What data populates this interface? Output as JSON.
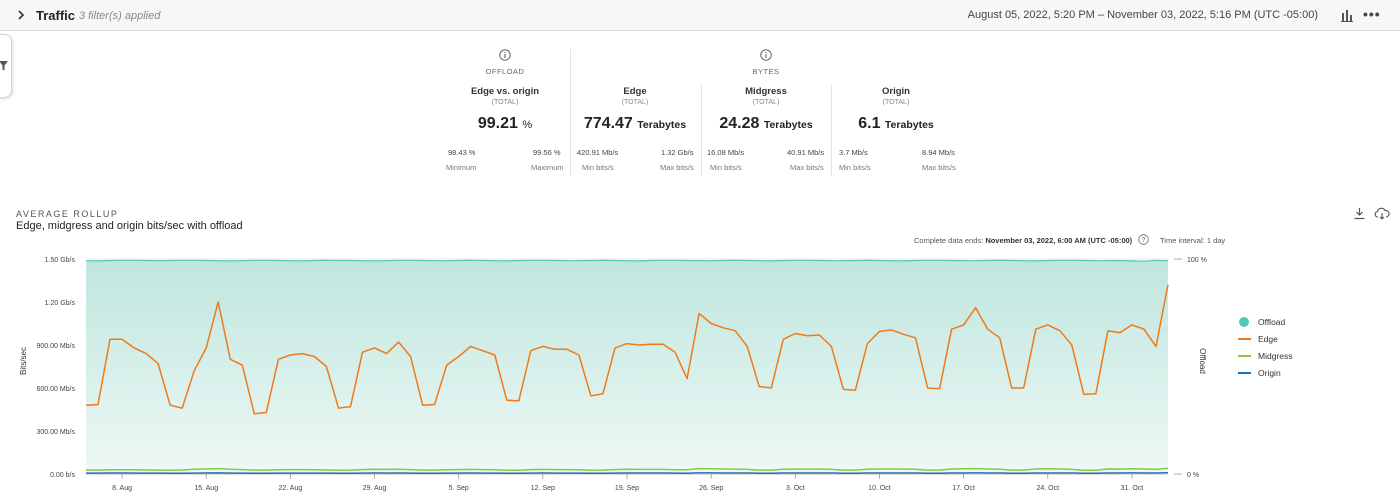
{
  "header": {
    "title": "Traffic",
    "filters": "3 filter(s) applied",
    "date_range": "August 05, 2022, 5:20 PM – November 03, 2022, 5:16 PM (UTC -05:00)",
    "more": "•••"
  },
  "summary": {
    "offload_label": "OFFLOAD",
    "bytes_label": "BYTES",
    "metrics": [
      {
        "name": "Edge vs. origin",
        "total": "(TOTAL)",
        "value": "99.21",
        "unit": "%",
        "min": "98.43 %",
        "max": "99.56 %",
        "min_label": "Minimum",
        "max_label": "Maximum"
      },
      {
        "name": "Edge",
        "total": "(TOTAL)",
        "value": "774.47",
        "unit": "Terabytes",
        "min": "420.91 Mb/s",
        "max": "1.32 Gb/s",
        "min_label": "Min bits/s",
        "max_label": "Max bits/s"
      },
      {
        "name": "Midgress",
        "total": "(TOTAL)",
        "value": "24.28",
        "unit": "Terabytes",
        "min": "16.08 Mb/s",
        "max": "40.91 Mb/s",
        "min_label": "Min bits/s",
        "max_label": "Max bits/s"
      },
      {
        "name": "Origin",
        "total": "(TOTAL)",
        "value": "6.1",
        "unit": "Terabytes",
        "min": "3.7 Mb/s",
        "max": "8.94 Mb/s",
        "min_label": "Min bits/s",
        "max_label": "Max bits/s"
      }
    ]
  },
  "rollup": {
    "label": "AVERAGE ROLLUP",
    "title": "Edge, midgress and origin bits/sec with offload",
    "complete_prefix": "Complete data ends:",
    "complete_value": "November 03, 2022, 6:00 AM (UTC -05:00)",
    "interval": "Time interval: 1 day"
  },
  "colors": {
    "offload": "#4fc9b0",
    "edge": "#f07a1a",
    "midgress": "#8dc63f",
    "origin": "#1a6fb5"
  },
  "chart_data": {
    "type": "line",
    "ylabel": "Bits/sec",
    "y2label": "Offload",
    "ylim": [
      0,
      1500
    ],
    "y_ticks": [
      0,
      300,
      600,
      900,
      1200,
      1500
    ],
    "y_tick_labels": [
      "0.00 b/s",
      "300.00 Mb/s",
      "600.00 Mb/s",
      "900.00 Mb/s",
      "1.20 Gb/s",
      "1.50 Gb/s"
    ],
    "y2lim": [
      0,
      100
    ],
    "y2_tick_labels": [
      "0 %",
      "100 %"
    ],
    "x_start": "2022-08-05",
    "x_end": "2022-11-03",
    "x_ticks": [
      "2022-08-08",
      "2022-08-15",
      "2022-08-22",
      "2022-08-29",
      "2022-09-05",
      "2022-09-12",
      "2022-09-19",
      "2022-09-26",
      "2022-10-03",
      "2022-10-10",
      "2022-10-17",
      "2022-10-24",
      "2022-10-31"
    ],
    "x_tick_labels": [
      "8. Aug",
      "15. Aug",
      "22. Aug",
      "29. Aug",
      "5. Sep",
      "12. Sep",
      "19. Sep",
      "26. Sep",
      "3. Oct",
      "10. Oct",
      "17. Oct",
      "24. Oct",
      "31. Oct"
    ],
    "legend_position": "right",
    "grid": true,
    "series": [
      {
        "name": "Offload",
        "axis": "right",
        "area": true,
        "values": [
          99.2,
          99.1,
          99.3,
          99.4,
          99.4,
          99.3,
          99.2,
          99.3,
          99.4,
          99.4,
          99.3,
          99.2,
          99.1,
          99.2,
          99.4,
          99.4,
          99.3,
          99.2,
          99.1,
          99.3,
          99.4,
          99.3,
          99.3,
          99.2,
          99.1,
          99.2,
          99.4,
          99.4,
          99.3,
          99.2,
          99.2,
          99.3,
          99.4,
          99.3,
          99.2,
          99.1,
          99.3,
          99.4,
          99.4,
          99.3,
          99.2,
          99.2,
          99.3,
          99.4,
          99.3,
          99.2,
          99.1,
          99.3,
          99.4,
          99.4,
          99.3,
          99.2,
          99.2,
          99.3,
          99.4,
          99.3,
          99.2,
          99.1,
          99.3,
          99.4,
          99.4,
          99.3,
          99.2,
          99.2,
          99.3,
          99.4,
          99.3,
          99.2,
          99.1,
          99.3,
          99.4,
          99.4,
          99.3,
          99.2,
          99.2,
          99.3,
          99.4,
          99.3,
          99.2,
          99.1,
          99.3,
          99.4,
          99.4,
          99.3,
          99.2,
          99.2,
          99.3,
          99.1,
          99.0,
          99.4,
          99.2
        ]
      },
      {
        "name": "Edge",
        "axis": "left",
        "values": [
          480,
          485,
          940,
          940,
          880,
          840,
          770,
          480,
          460,
          720,
          880,
          1200,
          800,
          760,
          420,
          430,
          800,
          830,
          840,
          820,
          750,
          460,
          470,
          850,
          880,
          840,
          920,
          820,
          480,
          485,
          760,
          820,
          890,
          860,
          830,
          515,
          510,
          860,
          890,
          870,
          870,
          830,
          545,
          560,
          880,
          910,
          900,
          905,
          905,
          850,
          665,
          1120,
          1050,
          1020,
          1000,
          890,
          610,
          600,
          940,
          980,
          965,
          970,
          890,
          590,
          585,
          910,
          995,
          1005,
          975,
          950,
          600,
          595,
          1010,
          1040,
          1160,
          1010,
          950,
          600,
          600,
          1010,
          1040,
          1000,
          900,
          555,
          560,
          1000,
          985,
          1040,
          1010,
          890,
          1320
        ]
      },
      {
        "name": "Midgress",
        "axis": "left",
        "values": [
          28,
          27,
          30,
          30,
          29,
          28,
          27,
          26,
          28,
          33,
          35,
          38,
          33,
          31,
          27,
          27,
          30,
          31,
          31,
          30,
          28,
          26,
          27,
          31,
          33,
          32,
          33,
          31,
          27,
          27,
          29,
          31,
          32,
          31,
          30,
          26,
          26,
          31,
          32,
          31,
          31,
          30,
          26,
          27,
          31,
          33,
          32,
          32,
          32,
          30,
          29,
          38,
          36,
          35,
          34,
          32,
          27,
          27,
          33,
          34,
          34,
          34,
          32,
          27,
          27,
          33,
          35,
          35,
          34,
          33,
          27,
          27,
          35,
          36,
          38,
          35,
          33,
          27,
          27,
          35,
          36,
          35,
          32,
          26,
          26,
          35,
          34,
          36,
          35,
          32,
          40
        ]
      },
      {
        "name": "Origin",
        "axis": "left",
        "values": [
          6,
          6,
          7,
          7,
          6,
          6,
          6,
          5,
          5,
          6,
          7,
          8,
          6,
          6,
          5,
          5,
          6,
          6,
          6,
          6,
          6,
          5,
          5,
          6,
          7,
          6,
          7,
          6,
          5,
          5,
          6,
          6,
          7,
          6,
          6,
          5,
          5,
          6,
          7,
          6,
          6,
          6,
          5,
          5,
          6,
          7,
          7,
          7,
          7,
          6,
          5,
          8,
          8,
          7,
          7,
          7,
          5,
          5,
          7,
          7,
          7,
          7,
          7,
          5,
          5,
          7,
          7,
          7,
          7,
          7,
          5,
          5,
          7,
          7,
          8,
          7,
          7,
          5,
          5,
          7,
          7,
          7,
          7,
          5,
          5,
          7,
          7,
          8,
          7,
          7,
          9
        ]
      }
    ]
  }
}
